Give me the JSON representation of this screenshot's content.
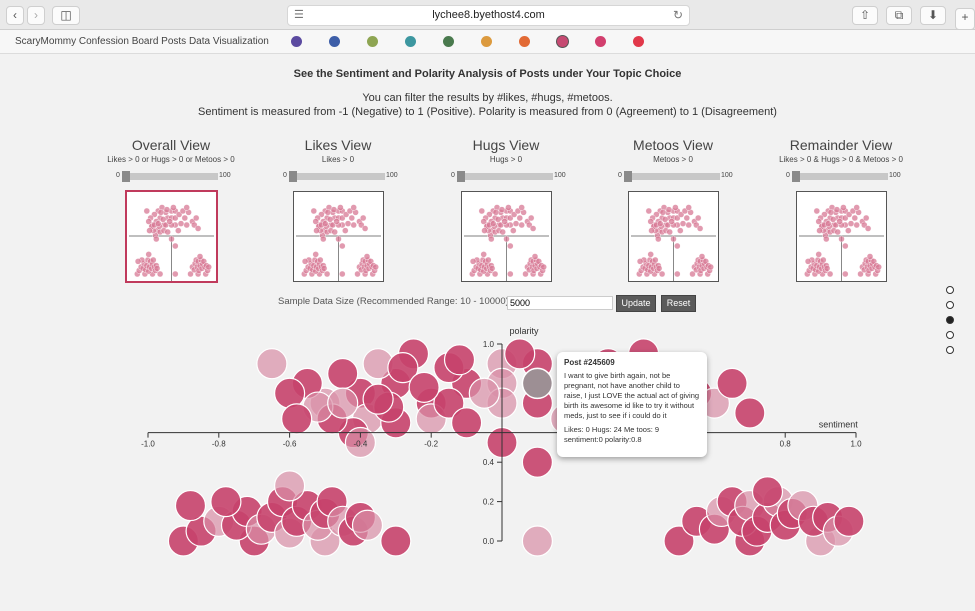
{
  "browser": {
    "url": "lychee8.byethost4.com"
  },
  "app": {
    "title": "ScaryMommy Confession Board Posts Data Visualization",
    "topic_colors": [
      "#5b4aa0",
      "#3d5ea8",
      "#8ea552",
      "#3d97a0",
      "#4a7a4e",
      "#dc9a3e",
      "#e26a35",
      "#c64a72",
      "#d23f6e",
      "#e1384a"
    ]
  },
  "header": {
    "heading": "See the Sentiment and Polarity Analysis of Posts under Your Topic Choice",
    "line1": "You can filter the results by #likes, #hugs, #metoos.",
    "line2": "Sentiment is measured from -1 (Negative) to 1 (Positive). Polarity is measured from 0 (Agreement) to 1 (Disagreement)"
  },
  "views": [
    {
      "title": "Overall View",
      "filter": "Likes > 0 or Hugs > 0 or Metoos > 0",
      "min": "0",
      "max": "100"
    },
    {
      "title": "Likes View",
      "filter": "Likes > 0",
      "min": "0",
      "max": "100"
    },
    {
      "title": "Hugs View",
      "filter": "Hugs > 0",
      "min": "0",
      "max": "100"
    },
    {
      "title": "Metoos View",
      "filter": "Metoos > 0",
      "min": "0",
      "max": "100"
    },
    {
      "title": "Remainder View",
      "filter": "Likes > 0 & Hugs > 0 & Metoos > 0",
      "min": "0",
      "max": "100"
    }
  ],
  "controls": {
    "sample_label": "Sample Data Size (Recommended Range: 10 - 10000)",
    "sample_value": "5000",
    "update_label": "Update",
    "reset_label": "Reset"
  },
  "chart_data": {
    "type": "scatter",
    "xlabel": "sentiment",
    "ylabel": "polarity",
    "xlim": [
      -1.0,
      1.0
    ],
    "ylim": [
      0.0,
      1.0
    ],
    "x_ticks": [
      "-1.0",
      "-0.8",
      "-0.6",
      "-0.4",
      "-0.2",
      "0.8",
      "1.0"
    ],
    "y_ticks": [
      "0.0",
      "0.2",
      "0.4",
      "1.0"
    ],
    "points": [
      {
        "x": -0.9,
        "y": 0.0
      },
      {
        "x": -0.7,
        "y": 0.0
      },
      {
        "x": -0.5,
        "y": 0.0
      },
      {
        "x": -0.3,
        "y": 0.0
      },
      {
        "x": -0.85,
        "y": 0.05
      },
      {
        "x": -0.8,
        "y": 0.1
      },
      {
        "x": -0.75,
        "y": 0.08
      },
      {
        "x": -0.72,
        "y": 0.15
      },
      {
        "x": -0.68,
        "y": 0.06
      },
      {
        "x": -0.65,
        "y": 0.12
      },
      {
        "x": -0.62,
        "y": 0.2
      },
      {
        "x": -0.6,
        "y": 0.04
      },
      {
        "x": -0.58,
        "y": 0.1
      },
      {
        "x": -0.55,
        "y": 0.18
      },
      {
        "x": -0.52,
        "y": 0.08
      },
      {
        "x": -0.5,
        "y": 0.14
      },
      {
        "x": -0.48,
        "y": 0.2
      },
      {
        "x": -0.45,
        "y": 0.1
      },
      {
        "x": -0.42,
        "y": 0.05
      },
      {
        "x": -0.4,
        "y": 0.12
      },
      {
        "x": -0.38,
        "y": 0.08
      },
      {
        "x": -0.78,
        "y": 0.2
      },
      {
        "x": -0.88,
        "y": 0.18
      },
      {
        "x": -0.6,
        "y": 0.28
      },
      {
        "x": 0.5,
        "y": 0.0
      },
      {
        "x": 0.7,
        "y": 0.0
      },
      {
        "x": 0.9,
        "y": 0.0
      },
      {
        "x": 0.55,
        "y": 0.1
      },
      {
        "x": 0.6,
        "y": 0.06
      },
      {
        "x": 0.62,
        "y": 0.15
      },
      {
        "x": 0.65,
        "y": 0.2
      },
      {
        "x": 0.68,
        "y": 0.1
      },
      {
        "x": 0.7,
        "y": 0.18
      },
      {
        "x": 0.72,
        "y": 0.05
      },
      {
        "x": 0.75,
        "y": 0.12
      },
      {
        "x": 0.78,
        "y": 0.2
      },
      {
        "x": 0.8,
        "y": 0.08
      },
      {
        "x": 0.82,
        "y": 0.14
      },
      {
        "x": 0.85,
        "y": 0.18
      },
      {
        "x": 0.88,
        "y": 0.1
      },
      {
        "x": 0.92,
        "y": 0.12
      },
      {
        "x": 0.95,
        "y": 0.05
      },
      {
        "x": 0.75,
        "y": 0.25
      },
      {
        "x": 0.98,
        "y": 0.1
      },
      {
        "x": 0.1,
        "y": 0.0
      },
      {
        "x": 0.1,
        "y": 0.4
      },
      {
        "x": 0.0,
        "y": 0.5
      },
      {
        "x": 0.0,
        "y": 0.9
      },
      {
        "x": 0.1,
        "y": 0.9
      },
      {
        "x": -0.1,
        "y": 0.8
      },
      {
        "x": 0.0,
        "y": 0.8
      },
      {
        "x": 0.1,
        "y": 0.8
      },
      {
        "x": 0.1,
        "y": 0.7
      },
      {
        "x": 0.0,
        "y": 0.7
      },
      {
        "x": -0.2,
        "y": 0.7
      },
      {
        "x": -0.3,
        "y": 0.8
      },
      {
        "x": -0.35,
        "y": 0.9
      },
      {
        "x": -0.4,
        "y": 0.75
      },
      {
        "x": -0.45,
        "y": 0.85
      },
      {
        "x": -0.5,
        "y": 0.7
      },
      {
        "x": -0.55,
        "y": 0.8
      },
      {
        "x": -0.6,
        "y": 0.75
      },
      {
        "x": -0.65,
        "y": 0.9
      },
      {
        "x": -0.25,
        "y": 0.95
      },
      {
        "x": -0.15,
        "y": 0.88
      },
      {
        "x": -0.38,
        "y": 0.62
      },
      {
        "x": -0.42,
        "y": 0.55
      },
      {
        "x": -0.48,
        "y": 0.62
      },
      {
        "x": -0.52,
        "y": 0.68
      },
      {
        "x": -0.3,
        "y": 0.6
      },
      {
        "x": -0.32,
        "y": 0.68
      },
      {
        "x": -0.2,
        "y": 0.62
      },
      {
        "x": -0.15,
        "y": 0.7
      },
      {
        "x": -0.1,
        "y": 0.6
      },
      {
        "x": -0.05,
        "y": 0.75
      },
      {
        "x": -0.28,
        "y": 0.88
      },
      {
        "x": -0.22,
        "y": 0.78
      },
      {
        "x": -0.45,
        "y": 0.7
      },
      {
        "x": -0.58,
        "y": 0.62
      },
      {
        "x": -0.35,
        "y": 0.72
      },
      {
        "x": -0.4,
        "y": 0.5
      },
      {
        "x": -0.12,
        "y": 0.92
      },
      {
        "x": 0.05,
        "y": 0.95
      },
      {
        "x": 0.2,
        "y": 0.85
      },
      {
        "x": 0.3,
        "y": 0.9
      },
      {
        "x": 0.35,
        "y": 0.8
      },
      {
        "x": 0.4,
        "y": 0.7
      },
      {
        "x": 0.45,
        "y": 0.88
      },
      {
        "x": 0.55,
        "y": 0.75
      },
      {
        "x": 0.6,
        "y": 0.7
      },
      {
        "x": 0.4,
        "y": 0.95
      },
      {
        "x": 0.25,
        "y": 0.72
      },
      {
        "x": 0.18,
        "y": 0.62
      },
      {
        "x": 0.65,
        "y": 0.8
      },
      {
        "x": 0.7,
        "y": 0.65
      }
    ]
  },
  "tooltip": {
    "title": "Post #245609",
    "text": "I want to give birth again, not be pregnant, not have another child to raise, I just LOVE the actual act of giving birth its awesome id like to try it without meds, just to see if i could do it",
    "stats": "Likes: 0 Hugs: 24 Me toos: 9",
    "scores": "sentiment:0 polarity:0.8"
  }
}
